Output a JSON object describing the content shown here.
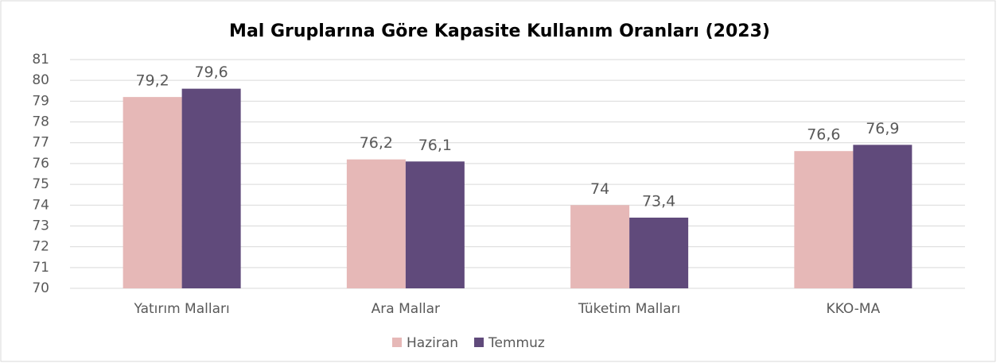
{
  "chart_data": {
    "type": "bar",
    "title": "Mal Gruplarına Göre Kapasite Kullanım Oranları (2023)",
    "categories": [
      "Yatırım Malları",
      "Ara Mallar",
      "Tüketim Malları",
      "KKO-MA"
    ],
    "series": [
      {
        "name": "Haziran",
        "color": "#e6b8b7",
        "values": [
          79.2,
          76.2,
          74,
          76.6
        ],
        "value_labels": [
          "79,2",
          "76,2",
          "74",
          "76,6"
        ]
      },
      {
        "name": "Temmuz",
        "color": "#604a7b",
        "values": [
          79.6,
          76.1,
          73.4,
          76.9
        ],
        "value_labels": [
          "79,6",
          "76,1",
          "73,4",
          "76,9"
        ]
      }
    ],
    "ylim": [
      70,
      81
    ],
    "yticks": [
      70,
      71,
      72,
      73,
      74,
      75,
      76,
      77,
      78,
      79,
      80,
      81
    ],
    "grid": true,
    "legend": "bottom"
  }
}
